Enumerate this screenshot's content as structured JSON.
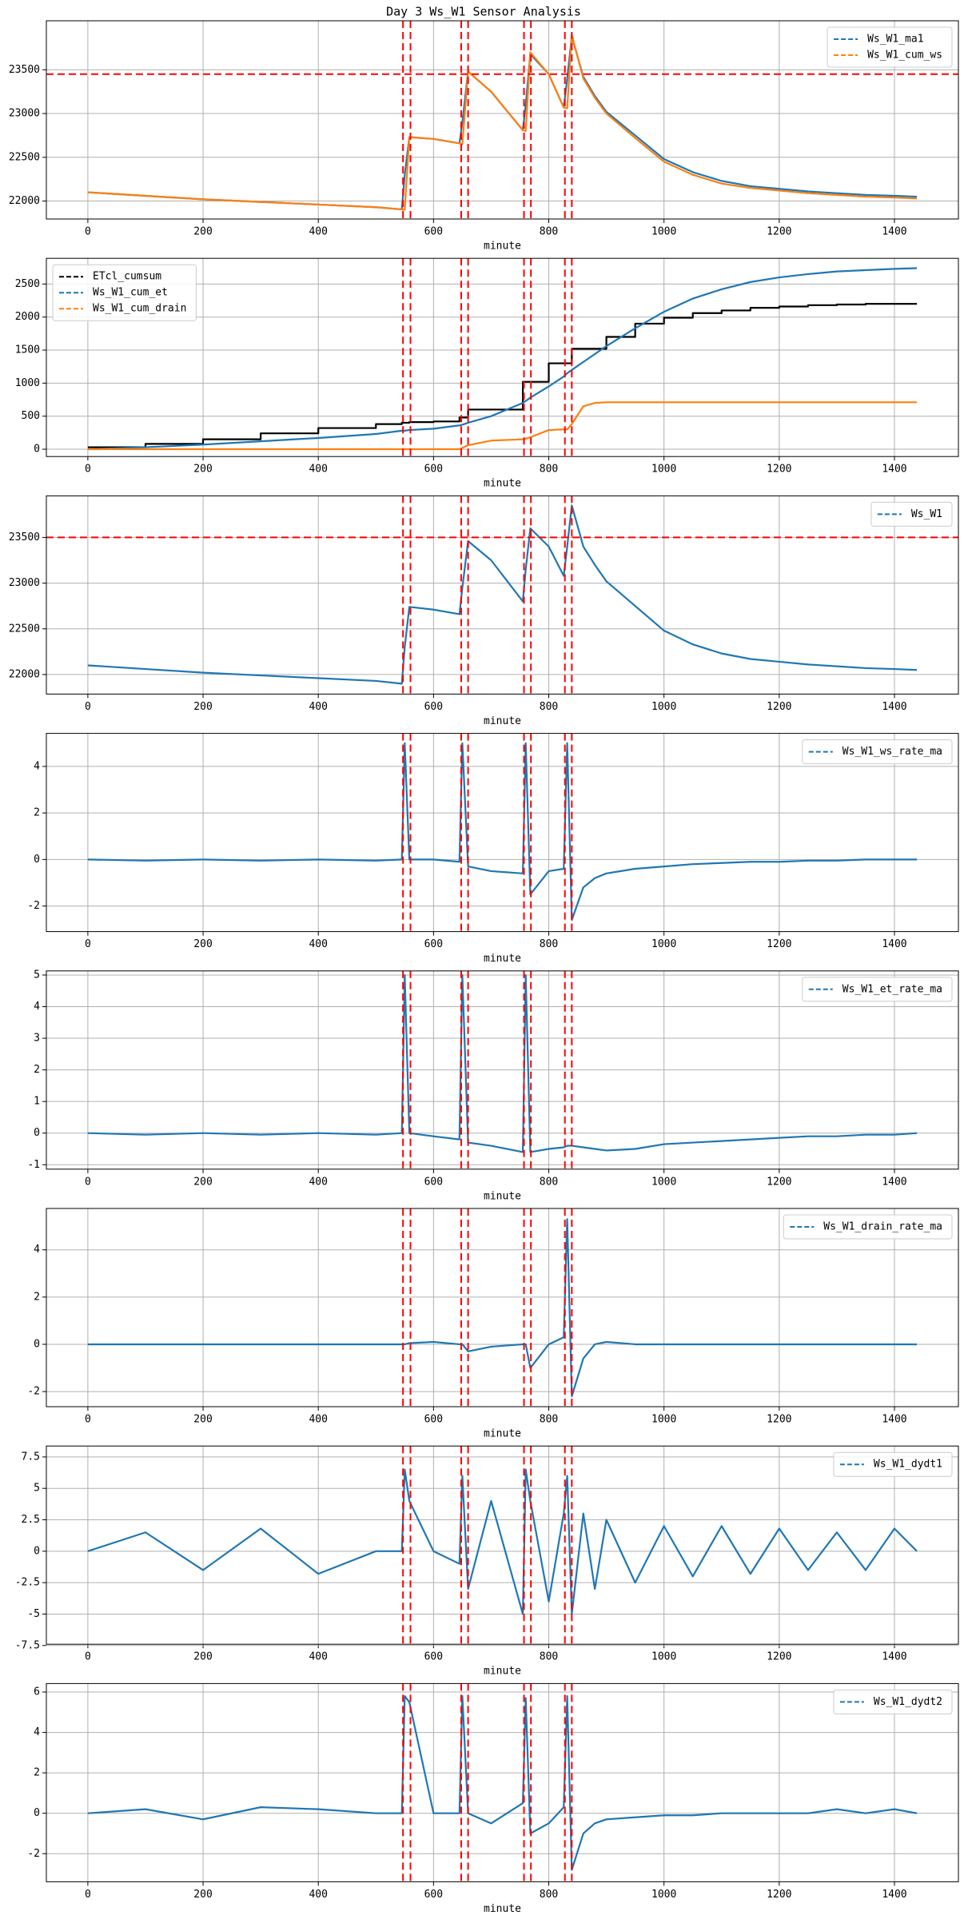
{
  "title": "Day 3 Ws_W1 Sensor Analysis",
  "chart_data": [
    {
      "type": "line",
      "xlabel": "minute",
      "x": [
        0,
        100,
        200,
        300,
        400,
        500,
        545,
        550,
        558,
        600,
        645,
        650,
        660,
        700,
        755,
        760,
        768,
        800,
        826,
        832,
        840,
        860,
        880,
        900,
        950,
        1000,
        1050,
        1100,
        1150,
        1200,
        1250,
        1300,
        1350,
        1400,
        1439
      ],
      "xlim": [
        -72,
        1511
      ],
      "xticks": [
        0,
        200,
        400,
        600,
        800,
        1000,
        1200,
        1400
      ],
      "ylim": [
        21795,
        24060
      ],
      "yticks": [
        22000,
        22500,
        23000,
        23500
      ],
      "grid": true,
      "legend": "upper right",
      "vlines": [
        547,
        560,
        648,
        660,
        757,
        769,
        828,
        840
      ],
      "vline_color": "#ff0000",
      "hlines": [
        23450
      ],
      "hline_color": "#ff0000",
      "series": [
        {
          "name": "Ws_W1_ma1",
          "color": "#1f77b4",
          "values": [
            22100,
            22060,
            22020,
            21990,
            21960,
            21930,
            21905,
            22300,
            22730,
            22710,
            22660,
            22900,
            23480,
            23250,
            22810,
            23100,
            23680,
            23450,
            23070,
            23400,
            23880,
            23420,
            23200,
            23020,
            22750,
            22480,
            22330,
            22230,
            22170,
            22140,
            22110,
            22090,
            22070,
            22060,
            22050
          ]
        },
        {
          "name": "Ws_W1_cum_ws",
          "color": "#ff7f0e",
          "values": [
            22100,
            22060,
            22020,
            21990,
            21960,
            21930,
            21905,
            21900,
            22730,
            22710,
            22660,
            22650,
            23480,
            23250,
            22810,
            22800,
            23700,
            23450,
            23070,
            23060,
            23900,
            23400,
            23180,
            23000,
            22720,
            22450,
            22300,
            22200,
            22150,
            22120,
            22090,
            22070,
            22050,
            22040,
            22030
          ]
        }
      ]
    },
    {
      "type": "line",
      "xlabel": "minute",
      "x": [
        0,
        100,
        200,
        300,
        400,
        500,
        545,
        550,
        558,
        600,
        645,
        650,
        660,
        700,
        755,
        760,
        768,
        800,
        826,
        832,
        840,
        860,
        880,
        900,
        950,
        1000,
        1050,
        1100,
        1150,
        1200,
        1250,
        1300,
        1350,
        1400,
        1439
      ],
      "xlim": [
        -72,
        1511
      ],
      "xticks": [
        0,
        200,
        400,
        600,
        800,
        1000,
        1200,
        1400
      ],
      "ylim": [
        -111,
        2889
      ],
      "yticks": [
        0,
        500,
        1000,
        1500,
        2000,
        2500
      ],
      "grid": true,
      "legend": "upper left",
      "vlines": [
        547,
        560,
        648,
        660,
        757,
        769,
        828,
        840
      ],
      "vline_color": "#ff0000",
      "series": [
        {
          "name": "ETcl_cumsum",
          "color": "#000000",
          "drawstyle": "steps-post",
          "values": [
            30,
            80,
            150,
            240,
            320,
            380,
            400,
            400,
            410,
            420,
            480,
            480,
            600,
            600,
            1020,
            1020,
            1020,
            1300,
            1300,
            1300,
            1520,
            1520,
            1520,
            1700,
            1900,
            1990,
            2060,
            2100,
            2140,
            2160,
            2180,
            2190,
            2200,
            2200,
            2200
          ]
        },
        {
          "name": "Ws_W1_cum_et",
          "color": "#1f77b4",
          "values": [
            0,
            30,
            70,
            120,
            170,
            230,
            280,
            280,
            290,
            310,
            360,
            370,
            400,
            500,
            700,
            730,
            780,
            950,
            1100,
            1150,
            1200,
            1320,
            1440,
            1560,
            1830,
            2080,
            2280,
            2420,
            2530,
            2600,
            2650,
            2690,
            2710,
            2730,
            2740
          ]
        },
        {
          "name": "Ws_W1_cum_drain",
          "color": "#ff7f0e",
          "values": [
            0,
            0,
            0,
            0,
            0,
            0,
            0,
            0,
            0,
            0,
            0,
            20,
            60,
            130,
            150,
            160,
            180,
            290,
            300,
            300,
            380,
            650,
            700,
            710,
            710,
            710,
            710,
            710,
            710,
            710,
            710,
            710,
            710,
            710,
            710
          ]
        }
      ]
    },
    {
      "type": "line",
      "xlabel": "minute",
      "x": [
        0,
        100,
        200,
        300,
        400,
        500,
        545,
        550,
        558,
        600,
        645,
        650,
        660,
        700,
        755,
        760,
        768,
        800,
        826,
        832,
        840,
        860,
        880,
        900,
        950,
        1000,
        1050,
        1100,
        1150,
        1200,
        1250,
        1300,
        1350,
        1400,
        1439
      ],
      "xlim": [
        -72,
        1511
      ],
      "xticks": [
        0,
        200,
        400,
        600,
        800,
        1000,
        1200,
        1400
      ],
      "ylim": [
        21786,
        23955
      ],
      "yticks": [
        22000,
        22500,
        23000,
        23500
      ],
      "grid": true,
      "legend": "upper right",
      "vlines": [
        547,
        560,
        648,
        660,
        757,
        769,
        828,
        840
      ],
      "vline_color": "#ff0000",
      "hlines": [
        23500
      ],
      "hline_color": "#ff0000",
      "series": [
        {
          "name": "Ws_W1",
          "color": "#1f77b4",
          "values": [
            22100,
            22060,
            22020,
            21990,
            21960,
            21930,
            21900,
            22300,
            22740,
            22710,
            22660,
            22950,
            23460,
            23250,
            22800,
            23150,
            23600,
            23400,
            23080,
            23400,
            23850,
            23400,
            23200,
            23020,
            22750,
            22480,
            22330,
            22230,
            22170,
            22140,
            22110,
            22090,
            22070,
            22060,
            22050
          ]
        }
      ]
    },
    {
      "type": "line",
      "xlabel": "minute",
      "x": [
        0,
        100,
        200,
        300,
        400,
        500,
        545,
        550,
        558,
        600,
        645,
        650,
        660,
        700,
        755,
        760,
        768,
        800,
        826,
        832,
        840,
        860,
        880,
        900,
        950,
        1000,
        1050,
        1100,
        1150,
        1200,
        1250,
        1300,
        1350,
        1400,
        1439
      ],
      "xlim": [
        -72,
        1511
      ],
      "xticks": [
        0,
        200,
        400,
        600,
        800,
        1000,
        1200,
        1400
      ],
      "ylim": [
        -3.1,
        5.42
      ],
      "yticks": [
        -2,
        0,
        2,
        4
      ],
      "grid": true,
      "legend": "upper right",
      "vlines": [
        547,
        560,
        648,
        660,
        757,
        769,
        828,
        840
      ],
      "vline_color": "#ff0000",
      "series": [
        {
          "name": "Ws_W1_ws_rate_ma",
          "color": "#1f77b4",
          "values": [
            0,
            -0.05,
            0,
            -0.05,
            0,
            -0.05,
            0,
            5,
            0,
            0,
            -0.1,
            5,
            -0.3,
            -0.5,
            -0.6,
            5,
            -1.5,
            -0.5,
            -0.4,
            5,
            -2.6,
            -1.2,
            -0.8,
            -0.6,
            -0.4,
            -0.3,
            -0.2,
            -0.15,
            -0.1,
            -0.1,
            -0.05,
            -0.05,
            0,
            0,
            0
          ]
        }
      ]
    },
    {
      "type": "line",
      "xlabel": "minute",
      "x": [
        0,
        100,
        200,
        300,
        400,
        500,
        545,
        550,
        558,
        600,
        645,
        650,
        660,
        700,
        755,
        760,
        768,
        800,
        826,
        832,
        840,
        860,
        880,
        900,
        950,
        1000,
        1050,
        1100,
        1150,
        1200,
        1250,
        1300,
        1350,
        1400,
        1439
      ],
      "xlim": [
        -72,
        1511
      ],
      "xticks": [
        0,
        200,
        400,
        600,
        800,
        1000,
        1200,
        1400
      ],
      "ylim": [
        -1.14,
        5.13
      ],
      "yticks": [
        -1,
        0,
        1,
        2,
        3,
        4,
        5
      ],
      "grid": true,
      "legend": "upper right",
      "vlines": [
        547,
        560,
        648,
        660,
        757,
        769,
        828,
        840
      ],
      "vline_color": "#ff0000",
      "series": [
        {
          "name": "Ws_W1_et_rate_ma",
          "color": "#1f77b4",
          "values": [
            0,
            -0.05,
            0,
            -0.05,
            0,
            -0.05,
            0,
            5,
            0,
            -0.1,
            -0.2,
            5,
            -0.3,
            -0.4,
            -0.6,
            5,
            -0.6,
            -0.5,
            -0.45,
            -0.4,
            -0.4,
            -0.45,
            -0.5,
            -0.55,
            -0.5,
            -0.35,
            -0.3,
            -0.25,
            -0.2,
            -0.15,
            -0.1,
            -0.1,
            -0.05,
            -0.05,
            0
          ]
        }
      ]
    },
    {
      "type": "line",
      "xlabel": "minute",
      "x": [
        0,
        100,
        200,
        300,
        400,
        500,
        545,
        550,
        558,
        600,
        645,
        650,
        660,
        700,
        755,
        760,
        768,
        800,
        826,
        832,
        840,
        860,
        880,
        900,
        950,
        1000,
        1050,
        1100,
        1150,
        1200,
        1250,
        1300,
        1350,
        1400,
        1439
      ],
      "xlim": [
        -72,
        1511
      ],
      "xticks": [
        0,
        200,
        400,
        600,
        800,
        1000,
        1200,
        1400
      ],
      "ylim": [
        -2.64,
        5.75
      ],
      "yticks": [
        -2,
        0,
        2,
        4
      ],
      "grid": true,
      "legend": "upper right",
      "vlines": [
        547,
        560,
        648,
        660,
        757,
        769,
        828,
        840
      ],
      "vline_color": "#ff0000",
      "series": [
        {
          "name": "Ws_W1_drain_rate_ma",
          "color": "#1f77b4",
          "values": [
            0,
            0,
            0,
            0,
            0,
            0,
            0,
            0,
            0.05,
            0.1,
            0,
            0,
            -0.3,
            -0.1,
            0,
            0,
            -1,
            0,
            0.3,
            5.3,
            -2.2,
            -0.6,
            0,
            0.1,
            0,
            0,
            0,
            0,
            0,
            0,
            0,
            0,
            0,
            0,
            0
          ]
        }
      ]
    },
    {
      "type": "line",
      "xlabel": "minute",
      "x": [
        0,
        100,
        200,
        300,
        400,
        500,
        545,
        550,
        558,
        600,
        645,
        650,
        660,
        700,
        755,
        760,
        768,
        800,
        826,
        832,
        840,
        860,
        880,
        900,
        950,
        1000,
        1050,
        1100,
        1150,
        1200,
        1250,
        1300,
        1350,
        1400,
        1439
      ],
      "xlim": [
        -72,
        1511
      ],
      "xticks": [
        0,
        200,
        400,
        600,
        800,
        1000,
        1200,
        1400
      ],
      "ylim": [
        -7.4,
        8.37
      ],
      "yticks": [
        -7.5,
        -5.0,
        -2.5,
        0.0,
        2.5,
        5.0,
        7.5
      ],
      "grid": true,
      "legend": "upper right",
      "vlines": [
        547,
        560,
        648,
        660,
        757,
        769,
        828,
        840
      ],
      "vline_color": "#ff0000",
      "series": [
        {
          "name": "Ws_W1_dydt1",
          "color": "#1f77b4",
          "values": [
            0,
            1.5,
            -1.5,
            1.8,
            -1.8,
            0,
            0,
            6.5,
            4,
            0,
            -1,
            6,
            -3,
            4,
            -5,
            6.5,
            4,
            -4,
            3,
            6,
            -5,
            3,
            -3,
            2.5,
            -2.5,
            2,
            -2,
            2,
            -1.8,
            1.8,
            -1.5,
            1.5,
            -1.5,
            1.8,
            0
          ]
        }
      ]
    },
    {
      "type": "line",
      "xlabel": "minute",
      "x": [
        0,
        100,
        200,
        300,
        400,
        500,
        545,
        550,
        558,
        600,
        645,
        650,
        660,
        700,
        755,
        760,
        768,
        800,
        826,
        832,
        840,
        860,
        880,
        900,
        950,
        1000,
        1050,
        1100,
        1150,
        1200,
        1250,
        1300,
        1350,
        1400,
        1439
      ],
      "xlim": [
        -72,
        1511
      ],
      "xticks": [
        0,
        200,
        400,
        600,
        800,
        1000,
        1200,
        1400
      ],
      "ylim": [
        -3.39,
        6.42
      ],
      "yticks": [
        -2,
        0,
        2,
        4,
        6
      ],
      "grid": true,
      "legend": "upper right",
      "vlines": [
        547,
        560,
        648,
        660,
        757,
        769,
        828,
        840
      ],
      "vline_color": "#ff0000",
      "series": [
        {
          "name": "Ws_W1_dydt2",
          "color": "#1f77b4",
          "values": [
            0,
            0.2,
            -0.3,
            0.3,
            0.2,
            0,
            0,
            5.8,
            5.5,
            0,
            0,
            5.8,
            0,
            -0.5,
            0.5,
            5.7,
            -1,
            -0.5,
            0.3,
            5.8,
            -2.8,
            -1,
            -0.5,
            -0.3,
            -0.2,
            -0.1,
            -0.1,
            0,
            0,
            0,
            0,
            0.2,
            0,
            0.2,
            0
          ]
        }
      ]
    }
  ]
}
